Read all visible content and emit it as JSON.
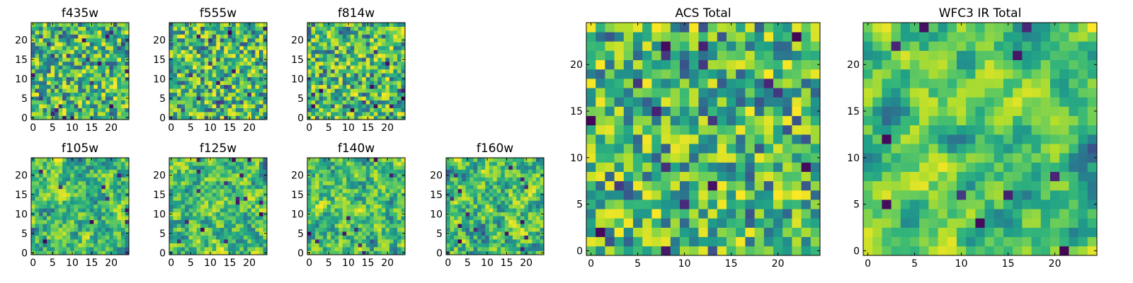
{
  "figure": {
    "title": ""
  },
  "chart_data": [
    {
      "type": "heatmap",
      "id": "f435w",
      "title": "f435w",
      "xlabel": "",
      "ylabel": "",
      "shape": [
        25,
        25
      ],
      "xlim": [
        0,
        25
      ],
      "ylim": [
        0,
        25
      ],
      "xticks": [
        "0",
        "5",
        "10",
        "15",
        "20"
      ],
      "yticks": [
        "0",
        "5",
        "10",
        "15",
        "20"
      ],
      "colormap": "viridis",
      "seed": 11,
      "smooth": 0,
      "texture": "fine-noise"
    },
    {
      "type": "heatmap",
      "id": "f555w",
      "title": "f555w",
      "xlabel": "",
      "ylabel": "",
      "shape": [
        25,
        25
      ],
      "xlim": [
        0,
        25
      ],
      "ylim": [
        0,
        25
      ],
      "xticks": [
        "0",
        "5",
        "10",
        "15",
        "20"
      ],
      "yticks": [
        "0",
        "5",
        "10",
        "15",
        "20"
      ],
      "colormap": "viridis",
      "seed": 23,
      "smooth": 0,
      "texture": "fine-noise"
    },
    {
      "type": "heatmap",
      "id": "f814w",
      "title": "f814w",
      "xlabel": "",
      "ylabel": "",
      "shape": [
        25,
        25
      ],
      "xlim": [
        0,
        25
      ],
      "ylim": [
        0,
        25
      ],
      "xticks": [
        "0",
        "5",
        "10",
        "15",
        "20"
      ],
      "yticks": [
        "0",
        "5",
        "10",
        "15",
        "20"
      ],
      "colormap": "viridis",
      "seed": 37,
      "smooth": 0,
      "texture": "fine-noise"
    },
    {
      "type": "heatmap",
      "id": "f105w",
      "title": "f105w",
      "xlabel": "",
      "ylabel": "",
      "shape": [
        25,
        25
      ],
      "xlim": [
        0,
        25
      ],
      "ylim": [
        0,
        25
      ],
      "xticks": [
        "0",
        "5",
        "10",
        "15",
        "20"
      ],
      "yticks": [
        "0",
        "5",
        "10",
        "15",
        "20"
      ],
      "colormap": "viridis",
      "seed": 41,
      "smooth": 1,
      "texture": "correlated-noise"
    },
    {
      "type": "heatmap",
      "id": "f125w",
      "title": "f125w",
      "xlabel": "",
      "ylabel": "",
      "shape": [
        25,
        25
      ],
      "xlim": [
        0,
        25
      ],
      "ylim": [
        0,
        25
      ],
      "xticks": [
        "0",
        "5",
        "10",
        "15",
        "20"
      ],
      "yticks": [
        "0",
        "5",
        "10",
        "15",
        "20"
      ],
      "colormap": "viridis",
      "seed": 53,
      "smooth": 1,
      "texture": "correlated-noise"
    },
    {
      "type": "heatmap",
      "id": "f140w",
      "title": "f140w",
      "xlabel": "",
      "ylabel": "",
      "shape": [
        25,
        25
      ],
      "xlim": [
        0,
        25
      ],
      "ylim": [
        0,
        25
      ],
      "xticks": [
        "0",
        "5",
        "10",
        "15",
        "20"
      ],
      "yticks": [
        "0",
        "5",
        "10",
        "15",
        "20"
      ],
      "colormap": "viridis",
      "seed": 67,
      "smooth": 1,
      "texture": "correlated-noise"
    },
    {
      "type": "heatmap",
      "id": "f160w",
      "title": "f160w",
      "xlabel": "",
      "ylabel": "",
      "shape": [
        25,
        25
      ],
      "xlim": [
        0,
        25
      ],
      "ylim": [
        0,
        25
      ],
      "xticks": [
        "0",
        "5",
        "10",
        "15",
        "20"
      ],
      "yticks": [
        "0",
        "5",
        "10",
        "15",
        "20"
      ],
      "colormap": "viridis",
      "seed": 79,
      "smooth": 1,
      "texture": "correlated-noise"
    },
    {
      "type": "heatmap",
      "id": "acs-total",
      "title": "ACS Total",
      "xlabel": "",
      "ylabel": "",
      "shape": [
        25,
        25
      ],
      "xlim": [
        0,
        25
      ],
      "ylim": [
        0,
        25
      ],
      "xticks": [
        "0",
        "5",
        "10",
        "15",
        "20"
      ],
      "yticks": [
        "0",
        "5",
        "10",
        "15",
        "20"
      ],
      "colormap": "viridis",
      "seed": 97,
      "smooth": 0,
      "texture": "blocky-noise"
    },
    {
      "type": "heatmap",
      "id": "wfc3-ir-total",
      "title": "WFC3 IR Total",
      "xlabel": "",
      "ylabel": "",
      "shape": [
        25,
        25
      ],
      "xlim": [
        0,
        25
      ],
      "ylim": [
        0,
        25
      ],
      "xticks": [
        "0",
        "5",
        "10",
        "15",
        "20"
      ],
      "yticks": [
        "0",
        "5",
        "10",
        "15",
        "20"
      ],
      "colormap": "viridis",
      "seed": 113,
      "smooth": 2,
      "texture": "smooth-noise"
    }
  ]
}
